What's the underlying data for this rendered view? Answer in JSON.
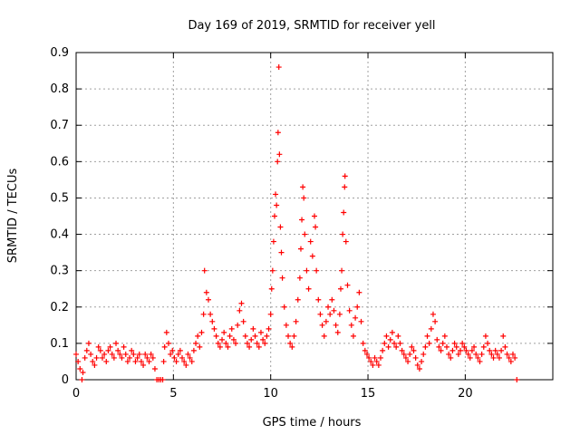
{
  "chart_data": {
    "type": "scatter",
    "title": "Day 169 of 2019, SRMTID for receiver yell",
    "xlabel": "GPS time / hours",
    "ylabel": "SRMTID / TECUs",
    "xlim": [
      0,
      24.5
    ],
    "ylim": [
      0,
      0.9
    ],
    "x_ticks": [
      0,
      5,
      10,
      15,
      20
    ],
    "x_tick_labels": [
      "0",
      "5",
      "10",
      "15",
      "20"
    ],
    "y_ticks": [
      0,
      0.1,
      0.2,
      0.3,
      0.4,
      0.5,
      0.6,
      0.7,
      0.8,
      0.9
    ],
    "y_tick_labels": [
      "0",
      "0.1",
      "0.2",
      "0.3",
      "0.4",
      "0.5",
      "0.6",
      "0.7",
      "0.8",
      "0.9"
    ],
    "grid": true,
    "marker": "+",
    "series": [
      {
        "name": "SRMTID",
        "color": "#ff0000",
        "points": [
          [
            0.0,
            0.07
          ],
          [
            0.1,
            0.05
          ],
          [
            0.2,
            0.03
          ],
          [
            0.3,
            0.0
          ],
          [
            0.35,
            0.02
          ],
          [
            0.45,
            0.06
          ],
          [
            0.55,
            0.08
          ],
          [
            0.65,
            0.1
          ],
          [
            0.75,
            0.07
          ],
          [
            0.85,
            0.05
          ],
          [
            0.95,
            0.04
          ],
          [
            1.05,
            0.06
          ],
          [
            1.15,
            0.09
          ],
          [
            1.25,
            0.08
          ],
          [
            1.35,
            0.06
          ],
          [
            1.45,
            0.07
          ],
          [
            1.55,
            0.05
          ],
          [
            1.65,
            0.08
          ],
          [
            1.75,
            0.09
          ],
          [
            1.85,
            0.07
          ],
          [
            1.95,
            0.06
          ],
          [
            2.05,
            0.1
          ],
          [
            2.15,
            0.08
          ],
          [
            2.25,
            0.07
          ],
          [
            2.35,
            0.06
          ],
          [
            2.45,
            0.09
          ],
          [
            2.55,
            0.07
          ],
          [
            2.65,
            0.05
          ],
          [
            2.75,
            0.06
          ],
          [
            2.85,
            0.08
          ],
          [
            2.95,
            0.07
          ],
          [
            3.05,
            0.05
          ],
          [
            3.15,
            0.06
          ],
          [
            3.25,
            0.07
          ],
          [
            3.35,
            0.05
          ],
          [
            3.45,
            0.04
          ],
          [
            3.55,
            0.07
          ],
          [
            3.65,
            0.06
          ],
          [
            3.75,
            0.05
          ],
          [
            3.85,
            0.07
          ],
          [
            3.95,
            0.06
          ],
          [
            4.05,
            0.03
          ],
          [
            4.15,
            0.0
          ],
          [
            4.25,
            0.0
          ],
          [
            4.35,
            0.0
          ],
          [
            4.45,
            0.0
          ],
          [
            4.5,
            0.05
          ],
          [
            4.55,
            0.09
          ],
          [
            4.65,
            0.13
          ],
          [
            4.75,
            0.1
          ],
          [
            4.85,
            0.07
          ],
          [
            4.95,
            0.08
          ],
          [
            5.05,
            0.06
          ],
          [
            5.15,
            0.05
          ],
          [
            5.25,
            0.07
          ],
          [
            5.35,
            0.08
          ],
          [
            5.45,
            0.06
          ],
          [
            5.55,
            0.05
          ],
          [
            5.65,
            0.04
          ],
          [
            5.75,
            0.07
          ],
          [
            5.85,
            0.06
          ],
          [
            5.95,
            0.05
          ],
          [
            6.05,
            0.08
          ],
          [
            6.15,
            0.1
          ],
          [
            6.25,
            0.12
          ],
          [
            6.35,
            0.09
          ],
          [
            6.45,
            0.13
          ],
          [
            6.55,
            0.18
          ],
          [
            6.6,
            0.3
          ],
          [
            6.7,
            0.24
          ],
          [
            6.8,
            0.22
          ],
          [
            6.9,
            0.18
          ],
          [
            7.0,
            0.16
          ],
          [
            7.1,
            0.14
          ],
          [
            7.2,
            0.12
          ],
          [
            7.3,
            0.1
          ],
          [
            7.4,
            0.09
          ],
          [
            7.5,
            0.11
          ],
          [
            7.6,
            0.13
          ],
          [
            7.7,
            0.1
          ],
          [
            7.8,
            0.09
          ],
          [
            7.9,
            0.12
          ],
          [
            8.0,
            0.14
          ],
          [
            8.1,
            0.11
          ],
          [
            8.2,
            0.1
          ],
          [
            8.3,
            0.15
          ],
          [
            8.4,
            0.19
          ],
          [
            8.5,
            0.21
          ],
          [
            8.6,
            0.16
          ],
          [
            8.7,
            0.12
          ],
          [
            8.8,
            0.1
          ],
          [
            8.9,
            0.09
          ],
          [
            9.0,
            0.11
          ],
          [
            9.1,
            0.14
          ],
          [
            9.2,
            0.12
          ],
          [
            9.3,
            0.1
          ],
          [
            9.4,
            0.09
          ],
          [
            9.5,
            0.13
          ],
          [
            9.6,
            0.11
          ],
          [
            9.7,
            0.1
          ],
          [
            9.8,
            0.12
          ],
          [
            9.9,
            0.14
          ],
          [
            10.0,
            0.18
          ],
          [
            10.05,
            0.25
          ],
          [
            10.1,
            0.3
          ],
          [
            10.15,
            0.38
          ],
          [
            10.2,
            0.45
          ],
          [
            10.25,
            0.51
          ],
          [
            10.3,
            0.48
          ],
          [
            10.35,
            0.6
          ],
          [
            10.38,
            0.68
          ],
          [
            10.42,
            0.86
          ],
          [
            10.45,
            0.62
          ],
          [
            10.5,
            0.42
          ],
          [
            10.55,
            0.35
          ],
          [
            10.6,
            0.28
          ],
          [
            10.7,
            0.2
          ],
          [
            10.8,
            0.15
          ],
          [
            10.9,
            0.12
          ],
          [
            11.0,
            0.1
          ],
          [
            11.1,
            0.09
          ],
          [
            11.2,
            0.12
          ],
          [
            11.3,
            0.16
          ],
          [
            11.4,
            0.22
          ],
          [
            11.5,
            0.28
          ],
          [
            11.55,
            0.36
          ],
          [
            11.6,
            0.44
          ],
          [
            11.65,
            0.53
          ],
          [
            11.7,
            0.5
          ],
          [
            11.75,
            0.4
          ],
          [
            11.85,
            0.3
          ],
          [
            11.95,
            0.25
          ],
          [
            12.05,
            0.38
          ],
          [
            12.15,
            0.34
          ],
          [
            12.25,
            0.45
          ],
          [
            12.3,
            0.42
          ],
          [
            12.35,
            0.3
          ],
          [
            12.45,
            0.22
          ],
          [
            12.55,
            0.18
          ],
          [
            12.65,
            0.15
          ],
          [
            12.75,
            0.12
          ],
          [
            12.85,
            0.16
          ],
          [
            12.95,
            0.2
          ],
          [
            13.05,
            0.18
          ],
          [
            13.15,
            0.22
          ],
          [
            13.25,
            0.19
          ],
          [
            13.35,
            0.15
          ],
          [
            13.45,
            0.13
          ],
          [
            13.55,
            0.18
          ],
          [
            13.6,
            0.25
          ],
          [
            13.65,
            0.3
          ],
          [
            13.7,
            0.4
          ],
          [
            13.75,
            0.46
          ],
          [
            13.8,
            0.53
          ],
          [
            13.82,
            0.56
          ],
          [
            13.87,
            0.38
          ],
          [
            13.95,
            0.26
          ],
          [
            14.05,
            0.19
          ],
          [
            14.15,
            0.15
          ],
          [
            14.25,
            0.12
          ],
          [
            14.35,
            0.17
          ],
          [
            14.45,
            0.2
          ],
          [
            14.55,
            0.24
          ],
          [
            14.65,
            0.16
          ],
          [
            14.75,
            0.1
          ],
          [
            14.85,
            0.08
          ],
          [
            14.95,
            0.07
          ],
          [
            15.05,
            0.06
          ],
          [
            15.15,
            0.05
          ],
          [
            15.25,
            0.04
          ],
          [
            15.35,
            0.06
          ],
          [
            15.45,
            0.05
          ],
          [
            15.55,
            0.04
          ],
          [
            15.65,
            0.06
          ],
          [
            15.75,
            0.08
          ],
          [
            15.85,
            0.1
          ],
          [
            15.95,
            0.12
          ],
          [
            16.05,
            0.09
          ],
          [
            16.15,
            0.11
          ],
          [
            16.25,
            0.13
          ],
          [
            16.35,
            0.1
          ],
          [
            16.45,
            0.09
          ],
          [
            16.55,
            0.12
          ],
          [
            16.65,
            0.1
          ],
          [
            16.75,
            0.08
          ],
          [
            16.85,
            0.07
          ],
          [
            16.95,
            0.06
          ],
          [
            17.05,
            0.05
          ],
          [
            17.15,
            0.07
          ],
          [
            17.25,
            0.09
          ],
          [
            17.35,
            0.08
          ],
          [
            17.45,
            0.06
          ],
          [
            17.55,
            0.04
          ],
          [
            17.65,
            0.03
          ],
          [
            17.75,
            0.05
          ],
          [
            17.85,
            0.07
          ],
          [
            17.95,
            0.09
          ],
          [
            18.05,
            0.12
          ],
          [
            18.15,
            0.1
          ],
          [
            18.25,
            0.14
          ],
          [
            18.35,
            0.18
          ],
          [
            18.45,
            0.16
          ],
          [
            18.55,
            0.11
          ],
          [
            18.65,
            0.09
          ],
          [
            18.75,
            0.08
          ],
          [
            18.85,
            0.1
          ],
          [
            18.95,
            0.12
          ],
          [
            19.05,
            0.09
          ],
          [
            19.15,
            0.07
          ],
          [
            19.25,
            0.06
          ],
          [
            19.35,
            0.08
          ],
          [
            19.45,
            0.1
          ],
          [
            19.55,
            0.09
          ],
          [
            19.65,
            0.07
          ],
          [
            19.75,
            0.08
          ],
          [
            19.85,
            0.1
          ],
          [
            19.95,
            0.09
          ],
          [
            20.05,
            0.08
          ],
          [
            20.15,
            0.07
          ],
          [
            20.25,
            0.06
          ],
          [
            20.35,
            0.08
          ],
          [
            20.45,
            0.09
          ],
          [
            20.55,
            0.07
          ],
          [
            20.65,
            0.06
          ],
          [
            20.75,
            0.05
          ],
          [
            20.85,
            0.07
          ],
          [
            20.95,
            0.09
          ],
          [
            21.05,
            0.12
          ],
          [
            21.15,
            0.1
          ],
          [
            21.25,
            0.08
          ],
          [
            21.35,
            0.07
          ],
          [
            21.45,
            0.06
          ],
          [
            21.55,
            0.08
          ],
          [
            21.65,
            0.07
          ],
          [
            21.75,
            0.06
          ],
          [
            21.85,
            0.08
          ],
          [
            21.95,
            0.12
          ],
          [
            22.05,
            0.09
          ],
          [
            22.15,
            0.07
          ],
          [
            22.25,
            0.06
          ],
          [
            22.35,
            0.05
          ],
          [
            22.45,
            0.07
          ],
          [
            22.55,
            0.06
          ],
          [
            22.65,
            0.0
          ]
        ]
      }
    ]
  }
}
